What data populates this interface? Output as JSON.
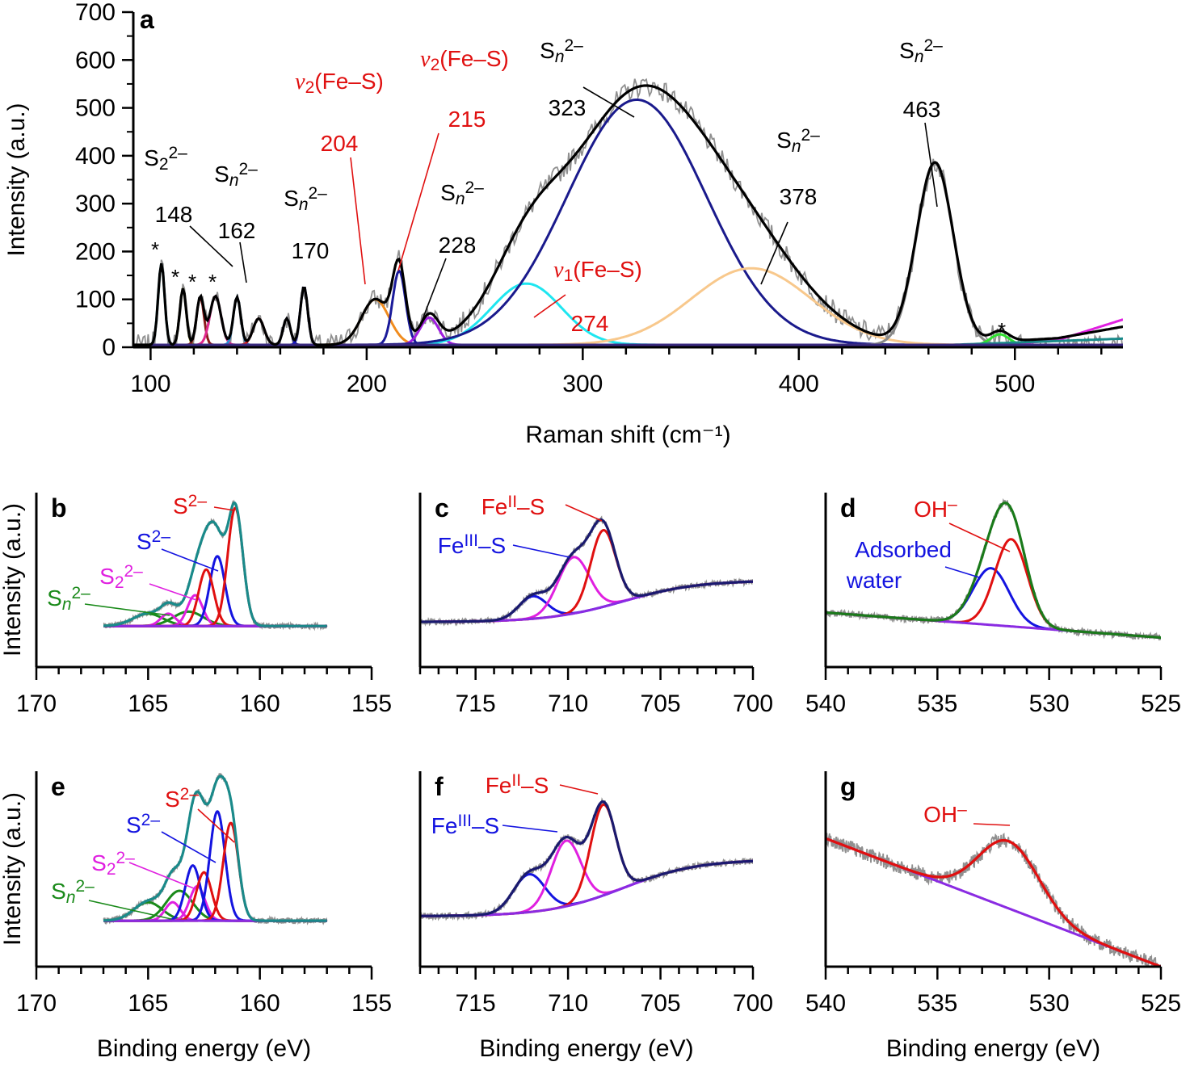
{
  "chart_data": [
    {
      "id": "a",
      "panel_label": "a",
      "type": "line",
      "xlabel": "Raman shift (cm⁻¹)",
      "ylabel": "Intensity (a.u.)",
      "xlim": [
        92,
        550
      ],
      "ylim": [
        0,
        700
      ],
      "xticks": [
        100,
        200,
        300,
        400,
        500
      ],
      "yticks": [
        0,
        100,
        200,
        300,
        400,
        500,
        600,
        700
      ],
      "baseline": {
        "type": "linear",
        "points": [
          [
            92,
            5
          ],
          [
            550,
            5
          ]
        ]
      },
      "peaks": [
        {
          "x": 105,
          "amp": 170,
          "fwhm": 3.5,
          "color": "#19d3e0",
          "name": "* peak"
        },
        {
          "x": 115,
          "amp": 118,
          "fwhm": 3.5,
          "color": "#8a8a1a",
          "name": "* peak"
        },
        {
          "x": 123,
          "amp": 100,
          "fwhm": 4,
          "color": "#8b1a1a",
          "name": "* peak"
        },
        {
          "x": 130,
          "amp": 102,
          "fwhm": 6,
          "color": "#e0288c",
          "name": "* peak"
        },
        {
          "x": 140,
          "amp": 100,
          "fwhm": 4,
          "color": "#2a8fd6",
          "name": "S2 2- 148"
        },
        {
          "x": 150,
          "amp": 55,
          "fwhm": 6,
          "color": "#e0201e",
          "name": "Sn 2- 162"
        },
        {
          "x": 163,
          "amp": 55,
          "fwhm": 4,
          "color": "#1a1a80",
          "name": "Sn 2- 162b"
        },
        {
          "x": 171,
          "amp": 122,
          "fwhm": 4,
          "color": "#1414c8",
          "name": "Sn 2- 170"
        },
        {
          "x": 204,
          "amp": 95,
          "fwhm": 15,
          "color": "#f08c1e",
          "name": "v2(Fe-S) 204"
        },
        {
          "x": 215,
          "amp": 155,
          "fwhm": 7,
          "color": "#1a1a9a",
          "name": "v2(Fe-S) 215"
        },
        {
          "x": 229,
          "amp": 57,
          "fwhm": 10,
          "color": "#a01ee0",
          "name": "Sn 2- 228"
        },
        {
          "x": 274,
          "amp": 128,
          "fwhm": 38,
          "color": "#1ee6f0",
          "name": "v1(Fe-S) 274"
        },
        {
          "x": 325,
          "amp": 512,
          "fwhm": 76,
          "color": "#1a1a8c",
          "name": "Sn 2- 323"
        },
        {
          "x": 378,
          "amp": 160,
          "fwhm": 65,
          "color": "#f8c88c",
          "name": "Sn 2- 378"
        },
        {
          "x": 463,
          "amp": 378,
          "fwhm": 20,
          "color": "#888888",
          "name": "Sn 2- 463"
        },
        {
          "x": 493,
          "amp": 22,
          "fwhm": 10,
          "color": "#30e030",
          "name": "* peak 493"
        }
      ],
      "extra_lines": [
        {
          "color": "#e020e0",
          "points": [
            [
              480,
              0
            ],
            [
              520,
              15
            ],
            [
              550,
              58
            ]
          ]
        },
        {
          "color": "#1a8a8a",
          "points": [
            [
              440,
              0
            ],
            [
              550,
              18
            ]
          ]
        }
      ],
      "envelope_color": "#000000",
      "raw_color": "#909090",
      "raw_noise": 22,
      "annotations": [
        {
          "text": "S₂²⁻",
          "color": "#000000"
        },
        {
          "text": "148",
          "color": "#000000"
        },
        {
          "text": "Sₙ²⁻",
          "color": "#000000"
        },
        {
          "text": "162",
          "color": "#000000"
        },
        {
          "text": "Sₙ²⁻",
          "color": "#000000"
        },
        {
          "text": "170",
          "color": "#000000"
        },
        {
          "text": "ν₂(Fe–S)",
          "color": "#e01010"
        },
        {
          "text": "204",
          "color": "#e01010"
        },
        {
          "text": "ν₂(Fe–S)",
          "color": "#e01010"
        },
        {
          "text": "215",
          "color": "#e01010"
        },
        {
          "text": "Sₙ²⁻",
          "color": "#000000"
        },
        {
          "text": "228",
          "color": "#000000"
        },
        {
          "text": "ν₁(Fe–S)",
          "color": "#e01010"
        },
        {
          "text": "274",
          "color": "#e01010"
        },
        {
          "text": "Sₙ²⁻",
          "color": "#000000"
        },
        {
          "text": "323",
          "color": "#000000"
        },
        {
          "text": "Sₙ²⁻",
          "color": "#000000"
        },
        {
          "text": "378",
          "color": "#000000"
        },
        {
          "text": "Sₙ²⁻",
          "color": "#000000"
        },
        {
          "text": "463",
          "color": "#000000"
        },
        {
          "text": "*",
          "color": "#000000"
        },
        {
          "text": "*",
          "color": "#000000"
        },
        {
          "text": "*",
          "color": "#000000"
        },
        {
          "text": "*",
          "color": "#000000"
        },
        {
          "text": "*",
          "color": "#000000"
        }
      ]
    },
    {
      "id": "b",
      "panel_label": "b",
      "type": "line",
      "xlabel": "",
      "ylabel": "Intensity (a.u.)",
      "xlim": [
        170,
        155
      ],
      "ylim": [
        -0.4,
        1.3
      ],
      "xticks": [
        170,
        165,
        160,
        155
      ],
      "data_range": [
        167,
        157
      ],
      "baseline": {
        "type": "shirley",
        "low": 0,
        "high": 0,
        "step_center": 161,
        "step_width": 1
      },
      "peaks": [
        {
          "x": 165,
          "amp": 0.12,
          "fwhm": 1.6,
          "color": "#1a8a1a",
          "name": "Sn 2-"
        },
        {
          "x": 163.2,
          "amp": 0.14,
          "fwhm": 1.6,
          "color": "#1a8a1a",
          "name": "Sn 2-"
        },
        {
          "x": 164.1,
          "amp": 0.12,
          "fwhm": 0.8,
          "color": "#e020e0",
          "name": "S2 2-"
        },
        {
          "x": 162.9,
          "amp": 0.3,
          "fwhm": 0.8,
          "color": "#e020e0",
          "name": "S2 2-"
        },
        {
          "x": 161.9,
          "amp": 0.68,
          "fwhm": 0.8,
          "color": "#1414e0",
          "name": "S 2-"
        },
        {
          "x": 162.4,
          "amp": 0.55,
          "fwhm": 0.8,
          "color": "#e01010",
          "name": "S 2-"
        },
        {
          "x": 161.1,
          "amp": 1.15,
          "fwhm": 0.8,
          "color": "#e01010",
          "name": "S 2-"
        }
      ],
      "envelope_color": "#1a8a8a",
      "raw_color": "#909090",
      "raw_noise": 0.025,
      "annotations": [
        {
          "text": "S²⁻",
          "color": "#e01010"
        },
        {
          "text": "S²⁻",
          "color": "#1414e0"
        },
        {
          "text": "S₂²⁻",
          "color": "#e020e0"
        },
        {
          "text": "Sₙ²⁻",
          "color": "#1a8a1a"
        }
      ]
    },
    {
      "id": "c",
      "panel_label": "c",
      "type": "line",
      "xlabel": "",
      "ylabel": "",
      "xlim": [
        718,
        700
      ],
      "ylim": [
        -0.35,
        1.2
      ],
      "xticks": [
        715,
        710,
        705,
        700
      ],
      "data_range": [
        718,
        700
      ],
      "baseline": {
        "type": "shirley",
        "low": 0.05,
        "high": 0.42,
        "step_center": 707,
        "step_width": 2
      },
      "peaks": [
        {
          "x": 711.9,
          "amp": 0.2,
          "fwhm": 1.8,
          "color": "#1414e0",
          "name": "FeIII-S"
        },
        {
          "x": 709.7,
          "amp": 0.5,
          "fwhm": 2.0,
          "color": "#e020e0",
          "name": "FeIII-S"
        },
        {
          "x": 708.1,
          "amp": 0.68,
          "fwhm": 1.6,
          "color": "#e01010",
          "name": "FeII-S"
        }
      ],
      "envelope_color": "#1a1a6e",
      "raw_color": "#909090",
      "raw_noise": 0.025,
      "annotations": [
        {
          "text": "Feᴵᴵ–S",
          "color": "#e01010"
        },
        {
          "text": "Feᴵᴵᴵ–S",
          "color": "#1414e0"
        }
      ]
    },
    {
      "id": "d",
      "panel_label": "d",
      "type": "line",
      "xlabel": "",
      "ylabel": "",
      "xlim": [
        540,
        525
      ],
      "ylim": [
        -0.3,
        1.3
      ],
      "xticks": [
        540,
        535,
        530,
        525
      ],
      "data_range": [
        540,
        525
      ],
      "baseline": {
        "type": "linear",
        "points": [
          [
            540,
            0.2
          ],
          [
            525,
            -0.03
          ]
        ]
      },
      "peaks": [
        {
          "x": 532.6,
          "amp": 0.52,
          "fwhm": 1.9,
          "color": "#1414e0",
          "name": "Adsorbed water"
        },
        {
          "x": 531.7,
          "amp": 0.8,
          "fwhm": 1.7,
          "color": "#e01010",
          "name": "OH-"
        }
      ],
      "envelope_color": "#1a7a1a",
      "raw_color": "#909090",
      "raw_noise": 0.03,
      "annotations": [
        {
          "text": "OH⁻",
          "color": "#e01010"
        },
        {
          "text": "Adsorbed",
          "color": "#1414e0"
        },
        {
          "text": "water",
          "color": "#1414e0"
        }
      ]
    },
    {
      "id": "e",
      "panel_label": "e",
      "type": "line",
      "xlabel": "Binding energy (eV)",
      "ylabel": "Intensity (a.u.)",
      "xlim": [
        170,
        155
      ],
      "ylim": [
        -0.4,
        1.3
      ],
      "xticks": [
        170,
        165,
        160,
        155
      ],
      "data_range": [
        167,
        157
      ],
      "baseline": {
        "type": "shirley",
        "low": 0,
        "high": 0,
        "step_center": 161,
        "step_width": 1
      },
      "peaks": [
        {
          "x": 165,
          "amp": 0.16,
          "fwhm": 1.5,
          "color": "#1a8a1a",
          "name": "Sn 2-"
        },
        {
          "x": 163.6,
          "amp": 0.26,
          "fwhm": 1.4,
          "color": "#1a8a1a",
          "name": "Sn 2-"
        },
        {
          "x": 163.9,
          "amp": 0.16,
          "fwhm": 0.8,
          "color": "#e020e0",
          "name": "S2 2-"
        },
        {
          "x": 162.8,
          "amp": 0.3,
          "fwhm": 0.8,
          "color": "#e020e0",
          "name": "S2 2-"
        },
        {
          "x": 163.0,
          "amp": 0.48,
          "fwhm": 0.8,
          "color": "#1414e0",
          "name": "S 2-"
        },
        {
          "x": 162.5,
          "amp": 0.42,
          "fwhm": 0.8,
          "color": "#e01010",
          "name": "S 2-"
        },
        {
          "x": 161.9,
          "amp": 0.95,
          "fwhm": 0.8,
          "color": "#1414e0",
          "name": "S 2-"
        },
        {
          "x": 161.3,
          "amp": 0.85,
          "fwhm": 0.8,
          "color": "#e01010",
          "name": "S 2-"
        }
      ],
      "envelope_color": "#1a8a8a",
      "raw_color": "#909090",
      "raw_noise": 0.025,
      "annotations": [
        {
          "text": "S²⁻",
          "color": "#e01010"
        },
        {
          "text": "S²⁻",
          "color": "#1414e0"
        },
        {
          "text": "S₂²⁻",
          "color": "#e020e0"
        },
        {
          "text": "Sₙ²⁻",
          "color": "#1a8a1a"
        }
      ]
    },
    {
      "id": "f",
      "panel_label": "f",
      "type": "line",
      "xlabel": "Binding energy (eV)",
      "ylabel": "",
      "xlim": [
        718,
        700
      ],
      "ylim": [
        -0.35,
        1.2
      ],
      "xticks": [
        715,
        710,
        705,
        700
      ],
      "data_range": [
        718,
        700
      ],
      "baseline": {
        "type": "shirley",
        "low": 0.05,
        "high": 0.5,
        "step_center": 707,
        "step_width": 2
      },
      "peaks": [
        {
          "x": 712.1,
          "amp": 0.3,
          "fwhm": 2.0,
          "color": "#1414e0",
          "name": "FeIII-S"
        },
        {
          "x": 710.1,
          "amp": 0.52,
          "fwhm": 1.9,
          "color": "#e020e0",
          "name": "FeIII-S"
        },
        {
          "x": 708.1,
          "amp": 0.72,
          "fwhm": 1.6,
          "color": "#e01010",
          "name": "FeII-S"
        }
      ],
      "envelope_color": "#1a1a6e",
      "raw_color": "#909090",
      "raw_noise": 0.025,
      "annotations": [
        {
          "text": "Feᴵᴵ–S",
          "color": "#e01010"
        },
        {
          "text": "Feᴵᴵᴵ–S",
          "color": "#1414e0"
        }
      ]
    },
    {
      "id": "g",
      "panel_label": "g",
      "type": "line",
      "xlabel": "Binding energy (eV)",
      "ylabel": "",
      "xlim": [
        540,
        525
      ],
      "ylim": [
        -0.3,
        1.3
      ],
      "xticks": [
        540,
        535,
        530,
        525
      ],
      "data_range": [
        540,
        525
      ],
      "baseline": {
        "type": "linear",
        "points": [
          [
            540,
            0.75
          ],
          [
            525,
            -0.3
          ]
        ]
      },
      "peaks": [
        {
          "x": 531.8,
          "amp": 0.55,
          "fwhm": 3.2,
          "color": "#e01010",
          "name": "OH-"
        }
      ],
      "envelope_color": "#e01010",
      "raw_color": "#909090",
      "raw_noise": 0.06,
      "annotations": [
        {
          "text": "OH⁻",
          "color": "#e01010"
        }
      ]
    }
  ]
}
